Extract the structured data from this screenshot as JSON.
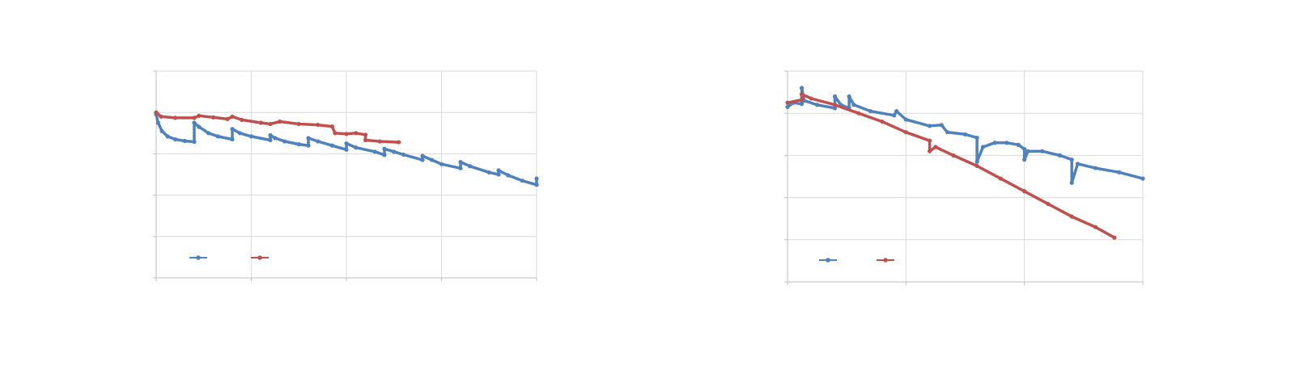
{
  "chart_data": [
    {
      "type": "line",
      "title": "",
      "xlabel": "",
      "ylabel": "",
      "xlim": [
        0,
        4
      ],
      "ylim": [
        0,
        5
      ],
      "x_ticks": [
        0,
        1,
        2,
        3,
        4
      ],
      "y_ticks": [
        0,
        1,
        2,
        3,
        4,
        5
      ],
      "grid": true,
      "legend": "bottom-left",
      "series": [
        {
          "color": "#4f81bd",
          "points": [
            [
              0,
              3.95
            ],
            [
              0.02,
              3.75
            ],
            [
              0.06,
              3.55
            ],
            [
              0.12,
              3.42
            ],
            [
              0.2,
              3.35
            ],
            [
              0.3,
              3.31
            ],
            [
              0.4,
              3.29
            ],
            [
              0.4,
              3.75
            ],
            [
              0.45,
              3.65
            ],
            [
              0.55,
              3.5
            ],
            [
              0.65,
              3.42
            ],
            [
              0.8,
              3.35
            ],
            [
              0.8,
              3.6
            ],
            [
              0.88,
              3.5
            ],
            [
              1.0,
              3.42
            ],
            [
              1.2,
              3.33
            ],
            [
              1.2,
              3.45
            ],
            [
              1.25,
              3.38
            ],
            [
              1.35,
              3.3
            ],
            [
              1.5,
              3.23
            ],
            [
              1.6,
              3.2
            ],
            [
              1.6,
              3.38
            ],
            [
              1.7,
              3.3
            ],
            [
              1.85,
              3.2
            ],
            [
              2.0,
              3.1
            ],
            [
              2.0,
              3.25
            ],
            [
              2.1,
              3.15
            ],
            [
              2.3,
              3.05
            ],
            [
              2.4,
              2.97
            ],
            [
              2.4,
              3.12
            ],
            [
              2.5,
              3.05
            ],
            [
              2.6,
              2.98
            ],
            [
              2.8,
              2.85
            ],
            [
              2.8,
              2.95
            ],
            [
              2.9,
              2.85
            ],
            [
              3.0,
              2.75
            ],
            [
              3.2,
              2.65
            ],
            [
              3.2,
              2.8
            ],
            [
              3.3,
              2.7
            ],
            [
              3.5,
              2.55
            ],
            [
              3.6,
              2.5
            ],
            [
              3.6,
              2.6
            ],
            [
              3.7,
              2.48
            ],
            [
              3.85,
              2.35
            ],
            [
              4.0,
              2.25
            ],
            [
              4.0,
              2.4
            ]
          ]
        },
        {
          "color": "#c0504d",
          "points": [
            [
              0,
              4.0
            ],
            [
              0.05,
              3.9
            ],
            [
              0.2,
              3.87
            ],
            [
              0.4,
              3.87
            ],
            [
              0.45,
              3.92
            ],
            [
              0.6,
              3.88
            ],
            [
              0.75,
              3.84
            ],
            [
              0.8,
              3.9
            ],
            [
              0.9,
              3.82
            ],
            [
              1.1,
              3.75
            ],
            [
              1.2,
              3.72
            ],
            [
              1.3,
              3.78
            ],
            [
              1.5,
              3.72
            ],
            [
              1.7,
              3.7
            ],
            [
              1.85,
              3.66
            ],
            [
              1.88,
              3.5
            ],
            [
              2.0,
              3.48
            ],
            [
              2.1,
              3.5
            ],
            [
              2.2,
              3.46
            ],
            [
              2.2,
              3.33
            ],
            [
              2.35,
              3.3
            ],
            [
              2.55,
              3.28
            ]
          ]
        }
      ]
    },
    {
      "type": "line",
      "title": "",
      "xlabel": "",
      "ylabel": "",
      "xlim": [
        0,
        3
      ],
      "ylim": [
        0,
        5
      ],
      "x_ticks": [
        0,
        1,
        2,
        3
      ],
      "y_ticks": [
        0,
        1,
        2,
        3,
        4,
        5
      ],
      "grid": true,
      "legend": "bottom-left",
      "series": [
        {
          "color": "#4f81bd",
          "points": [
            [
              0,
              4.15
            ],
            [
              0.05,
              4.25
            ],
            [
              0.12,
              4.22
            ],
            [
              0.12,
              4.6
            ],
            [
              0.14,
              4.3
            ],
            [
              0.25,
              4.2
            ],
            [
              0.4,
              4.12
            ],
            [
              0.4,
              4.4
            ],
            [
              0.45,
              4.2
            ],
            [
              0.52,
              4.12
            ],
            [
              0.52,
              4.4
            ],
            [
              0.56,
              4.2
            ],
            [
              0.7,
              4.05
            ],
            [
              0.9,
              3.95
            ],
            [
              0.92,
              4.05
            ],
            [
              1.0,
              3.85
            ],
            [
              1.2,
              3.7
            ],
            [
              1.3,
              3.72
            ],
            [
              1.35,
              3.55
            ],
            [
              1.5,
              3.5
            ],
            [
              1.6,
              3.42
            ],
            [
              1.6,
              2.85
            ],
            [
              1.65,
              3.2
            ],
            [
              1.75,
              3.3
            ],
            [
              1.85,
              3.3
            ],
            [
              1.95,
              3.25
            ],
            [
              2.0,
              3.15
            ],
            [
              2.0,
              2.9
            ],
            [
              2.03,
              3.1
            ],
            [
              2.15,
              3.1
            ],
            [
              2.3,
              3.0
            ],
            [
              2.4,
              2.9
            ],
            [
              2.4,
              2.35
            ],
            [
              2.45,
              2.8
            ],
            [
              2.6,
              2.7
            ],
            [
              2.8,
              2.6
            ],
            [
              3.0,
              2.45
            ]
          ]
        },
        {
          "color": "#c0504d",
          "points": [
            [
              0,
              4.25
            ],
            [
              0.12,
              4.32
            ],
            [
              0.12,
              4.45
            ],
            [
              0.2,
              4.35
            ],
            [
              0.4,
              4.2
            ],
            [
              0.6,
              4.0
            ],
            [
              0.8,
              3.8
            ],
            [
              1.0,
              3.55
            ],
            [
              1.2,
              3.35
            ],
            [
              1.2,
              3.1
            ],
            [
              1.25,
              3.2
            ],
            [
              1.4,
              3.0
            ],
            [
              1.6,
              2.75
            ],
            [
              1.8,
              2.45
            ],
            [
              2.0,
              2.15
            ],
            [
              2.2,
              1.85
            ],
            [
              2.4,
              1.55
            ],
            [
              2.6,
              1.3
            ],
            [
              2.76,
              1.05
            ]
          ]
        }
      ]
    }
  ]
}
